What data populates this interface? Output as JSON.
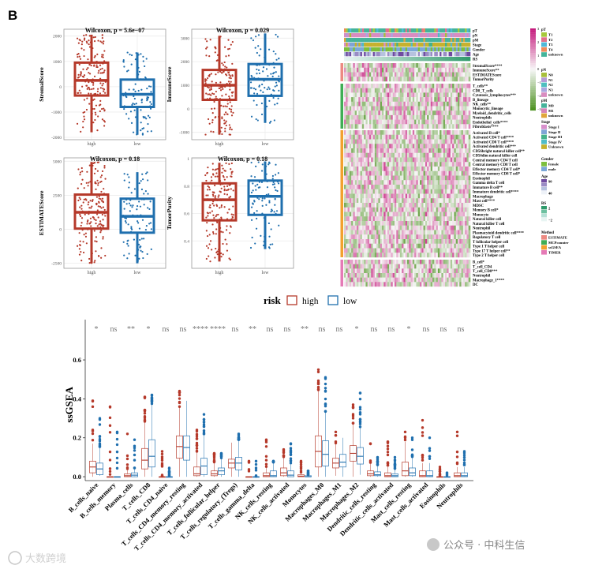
{
  "panel_label": "B",
  "colors": {
    "high": "#b5392a",
    "low": "#1f6fae",
    "grid": "#ececec",
    "frame": "#999999"
  },
  "chart_data": [
    {
      "type": "box",
      "id": "stromal",
      "title": "Wilcoxon, p = 5.6e−07",
      "ylabel": "StromalScore",
      "categories": [
        "high",
        "low"
      ],
      "ylim": [
        -2093,
        2270
      ],
      "yticks": [
        -2000,
        -1000,
        0,
        1000,
        2000
      ],
      "series": [
        {
          "name": "high",
          "q1": -350,
          "median": 250,
          "q3": 950,
          "min": -1800,
          "max": 2050
        },
        {
          "name": "low",
          "q1": -800,
          "median": -300,
          "q3": 280,
          "min": -1900,
          "max": 1350
        }
      ]
    },
    {
      "type": "box",
      "id": "immune",
      "title": "Wilcoxon, p = 0.029",
      "ylabel": "ImmuneScore",
      "categories": [
        "high",
        "low"
      ],
      "ylim": [
        -1312,
        3379
      ],
      "yticks": [
        -1000,
        0,
        1000,
        2000,
        3000
      ],
      "series": [
        {
          "name": "high",
          "q1": 380,
          "median": 1000,
          "q3": 1650,
          "min": -1100,
          "max": 3100
        },
        {
          "name": "low",
          "q1": 550,
          "median": 1250,
          "q3": 1900,
          "min": -600,
          "max": 3200
        }
      ]
    },
    {
      "type": "box",
      "id": "estimate",
      "title": "Wilcoxon, p = 0.18",
      "ylabel": "ESTIMATEScore",
      "categories": [
        "high",
        "low"
      ],
      "ylim": [
        -2868,
        5251
      ],
      "yticks": [
        -2500,
        0,
        2500,
        5000
      ],
      "series": [
        {
          "name": "high",
          "q1": 50,
          "median": 1250,
          "q3": 2550,
          "min": -2500,
          "max": 4950
        },
        {
          "name": "low",
          "q1": -250,
          "median": 950,
          "q3": 2250,
          "min": -2500,
          "max": 4200
        }
      ]
    },
    {
      "type": "box",
      "id": "purity",
      "title": "Wilcoxon, p = 0.18",
      "ylabel": "TumorPurity",
      "categories": [
        "high",
        "low"
      ],
      "ylim": [
        0.2,
        1.006
      ],
      "yticks": [
        0.4,
        0.6,
        0.8,
        1.0
      ],
      "series": [
        {
          "name": "high",
          "q1": 0.55,
          "median": 0.7,
          "q3": 0.82,
          "min": 0.25,
          "max": 0.97
        },
        {
          "name": "low",
          "q1": 0.59,
          "median": 0.725,
          "q3": 0.84,
          "min": 0.34,
          "max": 0.98
        }
      ]
    },
    {
      "type": "heatmap",
      "id": "immune-heatmap",
      "annotations": [
        "pT",
        "pN",
        "pM",
        "Stage",
        "Gender",
        "Age",
        "RS"
      ],
      "groups": [
        {
          "method": "ESTIMATE",
          "rows": [
            "StromalScore****",
            "ImmuneScore**",
            "ESTIMATEScore",
            "TumorPurity"
          ]
        },
        {
          "method": "MCPcounter",
          "rows": [
            "T_cells**",
            "CD8_T_cells",
            "Cytotoxic_lymphocytes***",
            "B_lineage",
            "NK_cells**",
            "Monocytic_lineage",
            "Myeloid_dendritic_cells",
            "Neutrophils",
            "Endothelial_cells****",
            "Fibroblasts****"
          ]
        },
        {
          "method": "ssGSEA",
          "rows": [
            "Activated B cell*",
            "Activated CD4 T cell****",
            "Activated CD8 T cell****",
            "Activated dendritic cell***",
            "CD56bright natural killer cell**",
            "CD56dim natural killer cell",
            "Central memory CD4 T cell",
            "Central memory CD8 T cell",
            "Effector memory CD4 T cell*",
            "Effector memory CD8 T cell*",
            "Eosinophil",
            "Gamma delta T cell",
            "Immature  B cell**",
            "Immature dendritic cell****",
            "Macrophage",
            "Mast cell****",
            "MDSC",
            "Memory B cell*",
            "Monocyte",
            "Natural killer cell",
            "Natural killer T cell",
            "Neutrophil",
            "Plasmacytoid dendritic cell****",
            "Regulatory T cell",
            "T follicular helper cell",
            "Type 1 T helper cell",
            "Type 17 T helper cell**",
            "Type 2 T helper cell"
          ]
        },
        {
          "method": "TIMER",
          "rows": [
            "B_cell*",
            "T_cell_CD4",
            "T_cell_CD8***",
            "Neutrophil",
            "Macrophage_1****",
            "DC"
          ]
        }
      ],
      "scale": {
        "ticks": [
          "3",
          "2",
          "1",
          "0",
          "−1",
          "−2",
          "−3"
        ],
        "high_color": "#c51b7d",
        "mid_color": "#f7f7f7",
        "low_color": "#276419"
      },
      "legends": [
        {
          "title": "pT",
          "items": [
            {
              "label": "T1",
              "color": "#a6c93a"
            },
            {
              "label": "T2",
              "color": "#e2708a"
            },
            {
              "label": "T3",
              "color": "#4fb8d8"
            },
            {
              "label": "T4",
              "color": "#f08a5a"
            },
            {
              "label": "unknown",
              "color": "#44b49a"
            }
          ]
        },
        {
          "title": "pN",
          "items": [
            {
              "label": "N0",
              "color": "#a7bf3a"
            },
            {
              "label": "N1",
              "color": "#b49ad6"
            },
            {
              "label": "N2",
              "color": "#4dbfbf"
            },
            {
              "label": "N3",
              "color": "#a9a7e0"
            },
            {
              "label": "unknown",
              "color": "#d98cc0"
            }
          ]
        },
        {
          "title": "pM",
          "items": [
            {
              "label": "M0",
              "color": "#46b39b"
            },
            {
              "label": "M1",
              "color": "#d784b8"
            },
            {
              "label": "unknown",
              "color": "#e0a63a"
            }
          ]
        },
        {
          "title": "Stage",
          "items": [
            {
              "label": "Stage I",
              "color": "#d78fcb"
            },
            {
              "label": "Stage II",
              "color": "#7fa4d6"
            },
            {
              "label": "Stage III",
              "color": "#45b28a"
            },
            {
              "label": "Stage IV",
              "color": "#4fbcc8"
            },
            {
              "label": "Unknown",
              "color": "#c6b12e"
            }
          ]
        },
        {
          "title": "Gender",
          "items": [
            {
              "label": "female",
              "color": "#7cbf3d"
            },
            {
              "label": "male",
              "color": "#7aa8d8"
            }
          ]
        },
        {
          "title": "Age",
          "items": [
            {
              "label": "90",
              "color": "#6f4aa0"
            },
            {
              "label": "",
              "color": "#9a8cc4"
            },
            {
              "label": "",
              "color": "#b6c2df"
            },
            {
              "label": "40",
              "color": "#eef2f8"
            }
          ]
        },
        {
          "title": "RS",
          "items": [
            {
              "label": "2",
              "color": "#2e9a6a"
            },
            {
              "label": "",
              "color": "#6cc0a0"
            },
            {
              "label": "",
              "color": "#b5e0d6"
            },
            {
              "label": "−2",
              "color": "#e8f5f3"
            }
          ]
        },
        {
          "title": "Method",
          "items": [
            {
              "label": "ESTIMATE",
              "color": "#ec8a82"
            },
            {
              "label": "MCPcounter",
              "color": "#3fae55"
            },
            {
              "label": "ssGSEA",
              "color": "#f2a12e"
            },
            {
              "label": "TIMER",
              "color": "#e57ab6"
            }
          ]
        }
      ]
    },
    {
      "type": "box",
      "id": "cibersort",
      "ylabel": "ssGSEA",
      "ylim": [
        -0.02,
        0.807
      ],
      "yticks": [
        0.0,
        0.2,
        0.4,
        0.6
      ],
      "legend": {
        "title": "risk",
        "entries": [
          "high",
          "low"
        ],
        "position": "top"
      },
      "categories": [
        "B_cells_naive",
        "B_cells_memory",
        "Plasma_cells",
        "T_cells_CD8",
        "T_cells_CD4_naive",
        "T_cells_CD4_memory_resting",
        "T_cells_CD4_memory_activated",
        "T_cells_follicular_helper",
        "T_cells_regulatory_(Tregs)",
        "T_cells_gamma_delta",
        "NK_cells_resting",
        "NK_cells_activated",
        "Monocytes",
        "Macrophages_M0",
        "Macrophages_M1",
        "Macrophages_M2",
        "Dendritic_cells_resting",
        "Dendritic_cells_activated",
        "Mast_cells_resting",
        "Mast_cells_activated",
        "Eosinophils",
        "Neutrophils"
      ],
      "significance": [
        "*",
        "ns",
        "**",
        "*",
        "ns",
        "ns",
        "****",
        "****",
        "ns",
        "**",
        "ns",
        "ns",
        "**",
        "ns",
        "ns",
        "*",
        "ns",
        "ns",
        "*",
        "ns",
        "ns",
        "ns"
      ],
      "high": [
        [
          0.02,
          0.05,
          0.08,
          0,
          0.17,
          0.39
        ],
        [
          0,
          0,
          0,
          0,
          0,
          0.36
        ],
        [
          0,
          0.005,
          0.015,
          0,
          0.035,
          0.22
        ],
        [
          0.04,
          0.085,
          0.145,
          0,
          0.28,
          0.41
        ],
        [
          0,
          0,
          0,
          0,
          0,
          0.13
        ],
        [
          0.095,
          0.155,
          0.21,
          0,
          0.36,
          0.44
        ],
        [
          0.005,
          0.015,
          0.05,
          0,
          0.13,
          0.24
        ],
        [
          0.005,
          0.015,
          0.03,
          0,
          0.07,
          0.12
        ],
        [
          0.045,
          0.07,
          0.09,
          0,
          0.175,
          0.175
        ],
        [
          0,
          0,
          0,
          0,
          0,
          0.08
        ],
        [
          0,
          0.005,
          0.02,
          0,
          0.05,
          0.19
        ],
        [
          0.005,
          0.02,
          0.045,
          0,
          0.1,
          0.14
        ],
        [
          0,
          0.003,
          0.01,
          0,
          0.02,
          0.08
        ],
        [
          0.05,
          0.13,
          0.21,
          0,
          0.44,
          0.55
        ],
        [
          0.045,
          0.07,
          0.095,
          0.005,
          0.17,
          0.23
        ],
        [
          0.08,
          0.12,
          0.16,
          0,
          0.275,
          0.37
        ],
        [
          0.005,
          0.015,
          0.03,
          0,
          0.07,
          0.17
        ],
        [
          0,
          0.005,
          0.02,
          0,
          0.05,
          0.18
        ],
        [
          0.005,
          0.03,
          0.075,
          0,
          0.18,
          0.23
        ],
        [
          0,
          0.005,
          0.03,
          0,
          0.07,
          0.29
        ],
        [
          0,
          0,
          0,
          0,
          0,
          0.05
        ],
        [
          0,
          0.005,
          0.02,
          0,
          0.05,
          0.23
        ]
      ],
      "low": [
        [
          0.01,
          0.04,
          0.07,
          0.005,
          0.15,
          0.3
        ],
        [
          0,
          0,
          0,
          0,
          0,
          0.23
        ],
        [
          0,
          0.008,
          0.02,
          0,
          0.045,
          0.19
        ],
        [
          0.05,
          0.105,
          0.19,
          0,
          0.375,
          0.42
        ],
        [
          0,
          0,
          0,
          0,
          0,
          0.045
        ],
        [
          0.085,
          0.15,
          0.21,
          0,
          0.39,
          0.39
        ],
        [
          0.01,
          0.055,
          0.095,
          0,
          0.215,
          0.32
        ],
        [
          0.01,
          0.03,
          0.045,
          0,
          0.095,
          0.12
        ],
        [
          0.035,
          0.07,
          0.1,
          0,
          0.19,
          0.22
        ],
        [
          0,
          0,
          0,
          0,
          0,
          0.08
        ],
        [
          0,
          0.005,
          0.03,
          0,
          0.075,
          0.08
        ],
        [
          0,
          0.008,
          0.03,
          0,
          0.07,
          0.17
        ],
        [
          0,
          0,
          0.005,
          0,
          0.01,
          0.03
        ],
        [
          0.055,
          0.115,
          0.185,
          0,
          0.335,
          0.51
        ],
        [
          0.05,
          0.075,
          0.115,
          0,
          0.2,
          0.2
        ],
        [
          0.065,
          0.105,
          0.15,
          0.01,
          0.255,
          0.43
        ],
        [
          0.005,
          0.01,
          0.025,
          0,
          0.06,
          0.1
        ],
        [
          0,
          0.005,
          0.015,
          0,
          0.04,
          0.1
        ],
        [
          0.005,
          0.02,
          0.045,
          0,
          0.1,
          0.2
        ],
        [
          0,
          0.005,
          0.03,
          0,
          0.07,
          0.2
        ],
        [
          0,
          0,
          0,
          0,
          0,
          0.02
        ],
        [
          0,
          0.005,
          0.02,
          0,
          0.05,
          0.13
        ]
      ],
      "box_fields": [
        "q1",
        "median",
        "q3",
        "whisker_low",
        "whisker_high",
        "max_outlier"
      ]
    }
  ],
  "watermark_left": "大数跨境",
  "watermark_right": "公众号 · 中科生信"
}
